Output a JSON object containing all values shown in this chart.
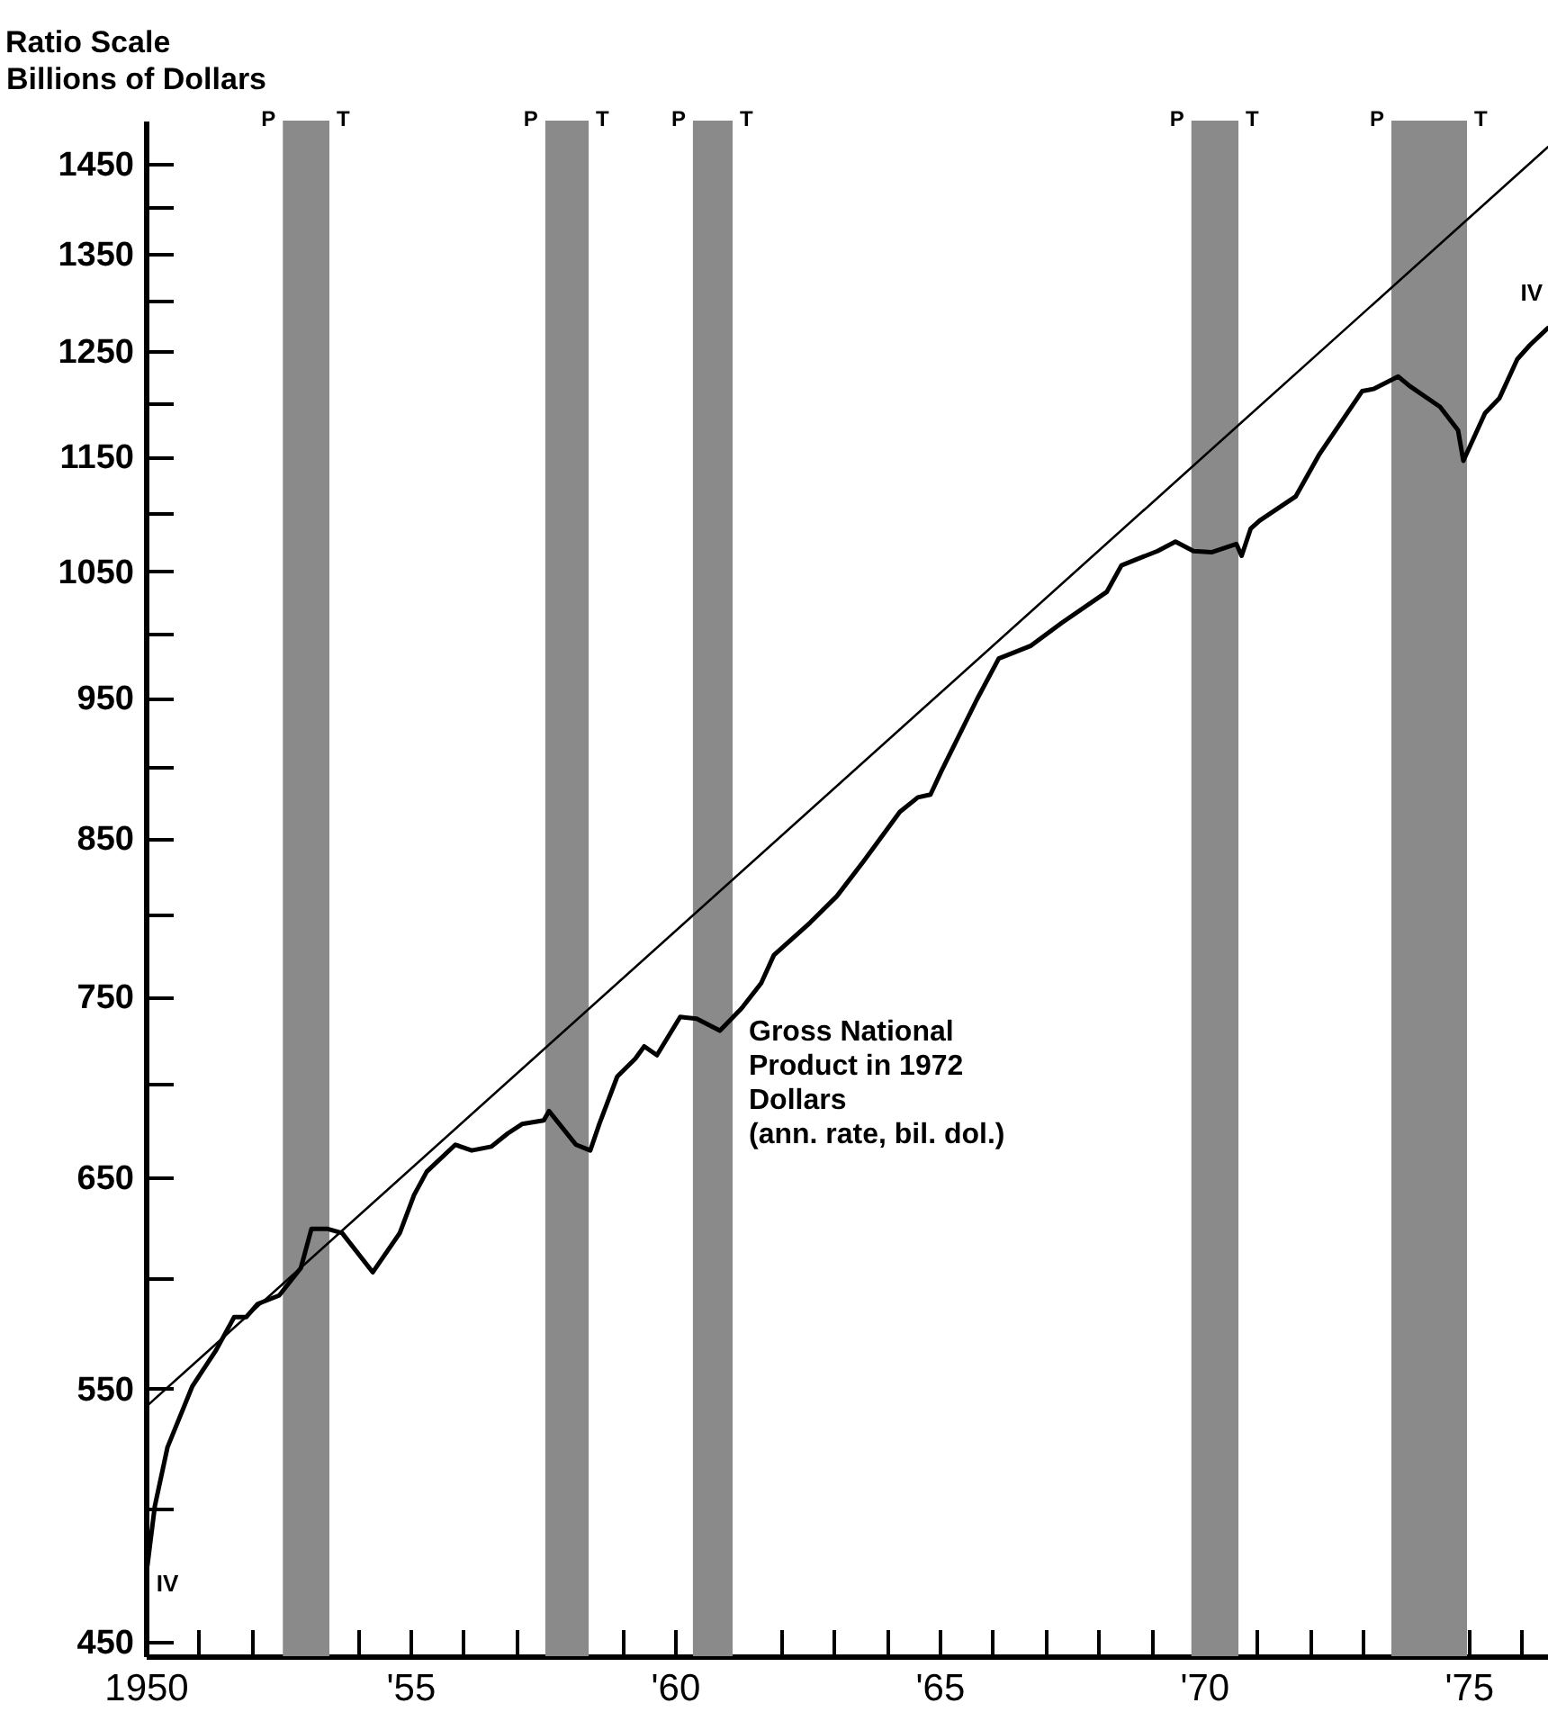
{
  "chart_data": {
    "type": "line",
    "ylabel": "Billions of Dollars",
    "log": "y",
    "grid": false,
    "marker": "none",
    "line_style": "solid",
    "xlim": [
      1950,
      1976.5
    ],
    "ylim": [
      445,
      1500
    ],
    "xticks": [
      {
        "value": 1950,
        "label": "1950"
      },
      {
        "value": 1951,
        "label": null
      },
      {
        "value": 1952,
        "label": null
      },
      {
        "value": 1953,
        "label": null
      },
      {
        "value": 1954,
        "label": null
      },
      {
        "value": 1955,
        "label": "'55"
      },
      {
        "value": 1956,
        "label": null
      },
      {
        "value": 1957,
        "label": null
      },
      {
        "value": 1958,
        "label": null
      },
      {
        "value": 1959,
        "label": null
      },
      {
        "value": 1960,
        "label": "'60"
      },
      {
        "value": 1961,
        "label": null
      },
      {
        "value": 1962,
        "label": null
      },
      {
        "value": 1963,
        "label": null
      },
      {
        "value": 1964,
        "label": null
      },
      {
        "value": 1965,
        "label": "'65"
      },
      {
        "value": 1966,
        "label": null
      },
      {
        "value": 1967,
        "label": null
      },
      {
        "value": 1968,
        "label": null
      },
      {
        "value": 1969,
        "label": null
      },
      {
        "value": 1970,
        "label": "'70"
      },
      {
        "value": 1971,
        "label": null
      },
      {
        "value": 1972,
        "label": null
      },
      {
        "value": 1973,
        "label": null
      },
      {
        "value": 1974,
        "label": null
      },
      {
        "value": 1975,
        "label": "'75"
      },
      {
        "value": 1976,
        "label": null
      }
    ],
    "yticks": [
      450,
      {
        "value": 500,
        "label": null
      },
      550,
      {
        "value": 600,
        "label": null
      },
      650,
      {
        "value": 700,
        "label": null
      },
      750,
      {
        "value": 800,
        "label": null
      },
      850,
      {
        "value": 900,
        "label": null
      },
      950,
      {
        "value": 1000,
        "label": null
      },
      1050,
      {
        "value": 1100,
        "label": null
      },
      1150,
      {
        "value": 1200,
        "label": null
      },
      1250,
      {
        "value": 1300,
        "label": null
      },
      1350,
      {
        "value": 1400,
        "label": null
      },
      1450
    ],
    "series": [
      {
        "name": "Gross National Product in 1972 Dollars (ann. rate, bil. dol.)",
        "color": "#000000",
        "x": [
          1950.03,
          1950.17,
          1950.41,
          1950.88,
          1951.33,
          1951.67,
          1951.9,
          1952.11,
          1952.52,
          1952.93,
          1953.13,
          1953.44,
          1953.71,
          1954.29,
          1954.8,
          1955.07,
          1955.31,
          1955.85,
          1956.16,
          1956.53,
          1956.84,
          1957.11,
          1957.52,
          1957.62,
          1958.13,
          1958.4,
          1958.57,
          1958.91,
          1959.25,
          1959.42,
          1959.66,
          1960.1,
          1960.41,
          1960.85,
          1961.26,
          1961.63,
          1961.87,
          1962.55,
          1963.06,
          1963.57,
          1964.25,
          1964.59,
          1964.83,
          1965.03,
          1965.71,
          1966.12,
          1966.73,
          1967.31,
          1968.16,
          1968.44,
          1969.12,
          1969.46,
          1969.8,
          1970.14,
          1970.61,
          1970.71,
          1970.88,
          1971.05,
          1971.73,
          1972.18,
          1972.99,
          1973.2,
          1973.67,
          1973.88,
          1974.46,
          1974.8,
          1974.9,
          1975.31,
          1975.58,
          1975.92,
          1976.16,
          1976.5
        ],
        "values": [
          478,
          501,
          525,
          551,
          567,
          582,
          582,
          588,
          592,
          605,
          624,
          624,
          622,
          603,
          622,
          641,
          653,
          667,
          664,
          666,
          673,
          678,
          680,
          685,
          667,
          664,
          678,
          704,
          714,
          721,
          716,
          738,
          737,
          730,
          743,
          758,
          775,
          795,
          812,
          835,
          868,
          878,
          880,
          896,
          949,
          980,
          990,
          1008,
          1033,
          1055,
          1067,
          1075,
          1067,
          1066,
          1073,
          1063,
          1086,
          1093,
          1114,
          1152,
          1211,
          1213,
          1225,
          1216,
          1196,
          1174,
          1146,
          1190,
          1204,
          1242,
          1256,
          1273
        ]
      },
      {
        "type": "line",
        "color": "#000000",
        "x": [
          1950,
          1976.5
        ],
        "values": [
          542,
          1469
        ]
      }
    ],
    "bands": [
      {
        "axis": "x",
        "from": 1952.59,
        "to": 1953.47,
        "color": "#8a8a8a",
        "label": "P T"
      },
      {
        "axis": "x",
        "from": 1957.55,
        "to": 1958.37,
        "color": "#8a8a8a",
        "label": "P T"
      },
      {
        "axis": "x",
        "from": 1960.34,
        "to": 1961.09,
        "color": "#8a8a8a",
        "label": "P T"
      },
      {
        "axis": "x",
        "from": 1969.76,
        "to": 1970.65,
        "color": "#8a8a8a",
        "label": "P T"
      },
      {
        "axis": "x",
        "from": 1973.54,
        "to": 1974.97,
        "color": "#8a8a8a",
        "label": "P T"
      }
    ],
    "annotations": [
      "Ratio Scale",
      "IV",
      "IV"
    ]
  }
}
